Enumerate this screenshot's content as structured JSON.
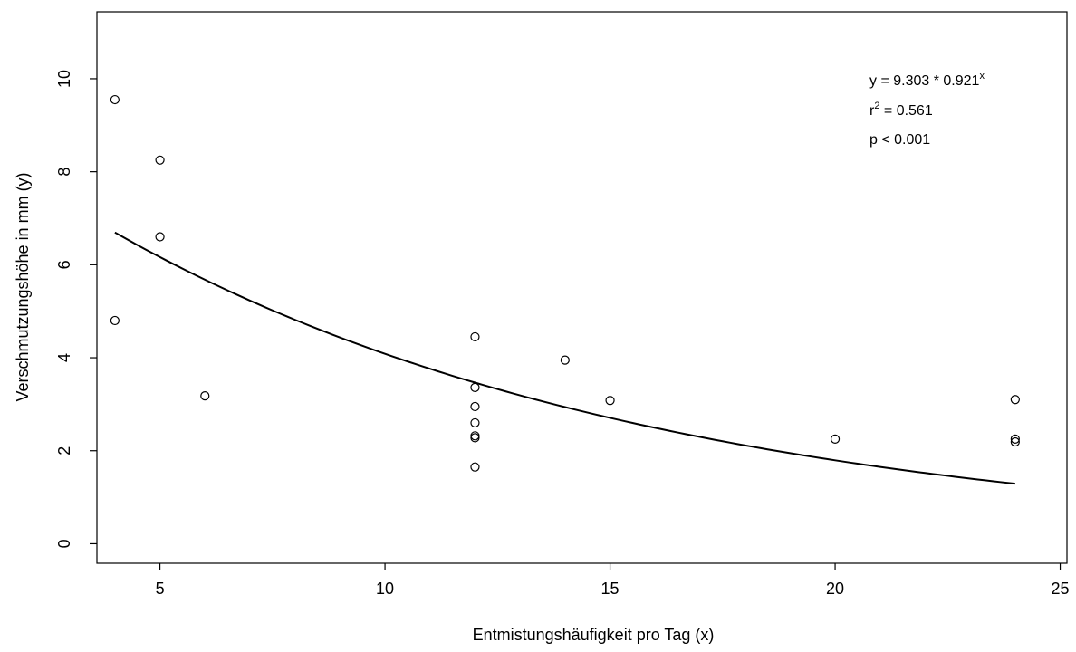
{
  "chart_data": {
    "type": "scatter",
    "xlabel": "Entmistungshäufigkeit pro Tag (x)",
    "ylabel": "Verschmutzungshöhe in mm (y)",
    "xlim": [
      3.6,
      25.15
    ],
    "ylim": [
      -0.42,
      11.44
    ],
    "xticks": [
      5,
      10,
      15,
      20,
      25
    ],
    "yticks": [
      0,
      2,
      4,
      6,
      8,
      10
    ],
    "grid": false,
    "legend": null,
    "series": [
      {
        "marker": "open-circle",
        "points": [
          {
            "x": 4,
            "y": 9.55
          },
          {
            "x": 4,
            "y": 4.8
          },
          {
            "x": 5,
            "y": 8.25
          },
          {
            "x": 5,
            "y": 6.6
          },
          {
            "x": 6,
            "y": 3.18
          },
          {
            "x": 12,
            "y": 4.45
          },
          {
            "x": 12,
            "y": 3.36
          },
          {
            "x": 12,
            "y": 2.95
          },
          {
            "x": 12,
            "y": 2.6
          },
          {
            "x": 12,
            "y": 2.32
          },
          {
            "x": 12,
            "y": 2.28
          },
          {
            "x": 12,
            "y": 1.65
          },
          {
            "x": 14,
            "y": 3.95
          },
          {
            "x": 15,
            "y": 3.08
          },
          {
            "x": 20,
            "y": 2.25
          },
          {
            "x": 24,
            "y": 3.1
          },
          {
            "x": 24,
            "y": 2.25
          },
          {
            "x": 24,
            "y": 2.19
          }
        ]
      }
    ],
    "fit": {
      "type": "exponential",
      "a": 9.303,
      "b": 0.921,
      "x_range": [
        4,
        24
      ]
    },
    "annotations": {
      "equation_base": "y = 9.303 * 0.921",
      "equation_exponent": "x",
      "r2_base": "r",
      "r2_exponent": "2",
      "r2_value": " = 0.561",
      "p_value": "p < 0.001"
    }
  }
}
